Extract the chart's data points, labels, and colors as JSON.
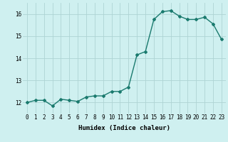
{
  "x": [
    0,
    1,
    2,
    3,
    4,
    5,
    6,
    7,
    8,
    9,
    10,
    11,
    12,
    13,
    14,
    15,
    16,
    17,
    18,
    19,
    20,
    21,
    22,
    23
  ],
  "y": [
    12.0,
    12.1,
    12.1,
    11.85,
    12.15,
    12.1,
    12.05,
    12.25,
    12.3,
    12.3,
    12.5,
    12.5,
    12.7,
    14.15,
    14.3,
    15.75,
    16.1,
    16.15,
    15.9,
    15.75,
    15.75,
    15.85,
    15.55,
    14.85
  ],
  "line_color": "#1a7a6e",
  "marker": "D",
  "marker_size": 2.0,
  "bg_color": "#cff0f0",
  "grid_color": "#aed4d4",
  "xlabel": "Humidex (Indice chaleur)",
  "ylim": [
    11.5,
    16.5
  ],
  "xlim": [
    -0.5,
    23.5
  ],
  "yticks": [
    12,
    13,
    14,
    15,
    16
  ],
  "xticks": [
    0,
    1,
    2,
    3,
    4,
    5,
    6,
    7,
    8,
    9,
    10,
    11,
    12,
    13,
    14,
    15,
    16,
    17,
    18,
    19,
    20,
    21,
    22,
    23
  ],
  "xlabel_fontsize": 6.5,
  "tick_fontsize": 5.5,
  "line_width": 1.0
}
